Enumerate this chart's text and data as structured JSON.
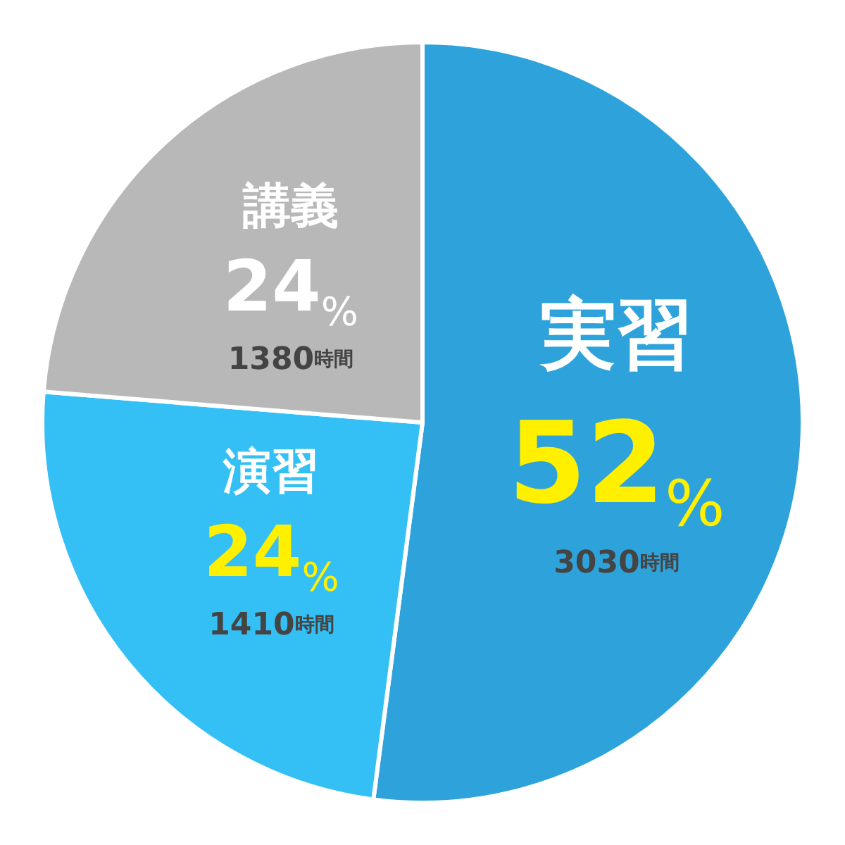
{
  "chart_data": {
    "type": "pie",
    "categories": [
      "実習",
      "演習",
      "講義"
    ],
    "values": [
      3030,
      1410,
      1380
    ],
    "colors": [
      "#2ea3db",
      "#35c0f5",
      "#b8b8b8"
    ],
    "value_labels": [
      "52%\n3030時間",
      "24%\n1410時間",
      "24%\n1380時間"
    ],
    "legend": false
  }
}
